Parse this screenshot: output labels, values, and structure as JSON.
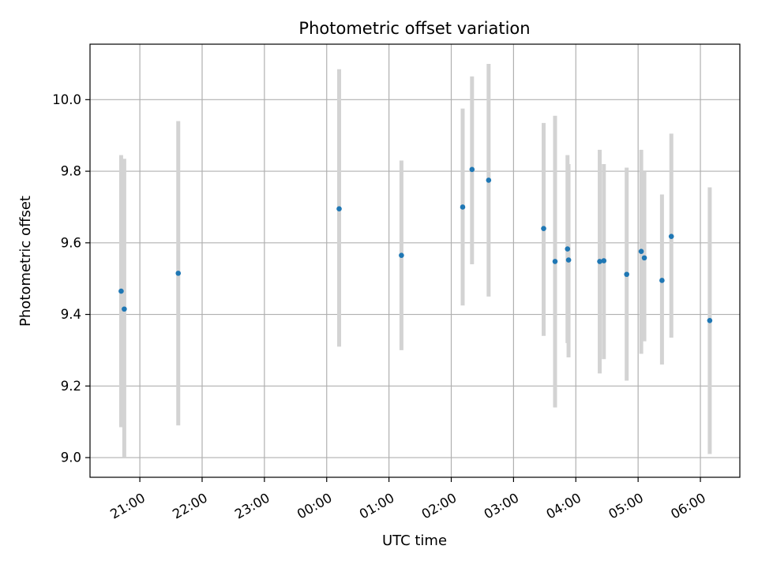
{
  "chart_data": {
    "type": "scatter",
    "title": "Photometric offset variation",
    "xlabel": "UTC time",
    "ylabel": "Photometric offset",
    "xlim": [
      "20:12",
      "30:38"
    ],
    "ylim": [
      8.945,
      10.155
    ],
    "grid": true,
    "x_ticks": [
      {
        "t": "21:00",
        "label": "21:00"
      },
      {
        "t": "22:00",
        "label": "22:00"
      },
      {
        "t": "23:00",
        "label": "23:00"
      },
      {
        "t": "24:00",
        "label": "00:00"
      },
      {
        "t": "25:00",
        "label": "01:00"
      },
      {
        "t": "26:00",
        "label": "02:00"
      },
      {
        "t": "27:00",
        "label": "03:00"
      },
      {
        "t": "28:00",
        "label": "04:00"
      },
      {
        "t": "29:00",
        "label": "05:00"
      },
      {
        "t": "30:00",
        "label": "06:00"
      }
    ],
    "y_ticks": [
      {
        "v": 9.0,
        "label": "9.0"
      },
      {
        "v": 9.2,
        "label": "9.2"
      },
      {
        "v": 9.4,
        "label": "9.4"
      },
      {
        "v": 9.6,
        "label": "9.6"
      },
      {
        "v": 9.8,
        "label": "9.8"
      },
      {
        "v": 10.0,
        "label": "10.0"
      }
    ],
    "points": [
      {
        "t": "20:42",
        "y": 9.465,
        "err_low": 9.085,
        "err_high": 9.845
      },
      {
        "t": "20:45",
        "y": 9.415,
        "err_low": 9.0,
        "err_high": 9.835
      },
      {
        "t": "21:37",
        "y": 9.515,
        "err_low": 9.09,
        "err_high": 9.94
      },
      {
        "t": "24:12",
        "y": 9.695,
        "err_low": 9.31,
        "err_high": 10.085
      },
      {
        "t": "25:12",
        "y": 9.565,
        "err_low": 9.3,
        "err_high": 9.83
      },
      {
        "t": "26:11",
        "y": 9.7,
        "err_low": 9.425,
        "err_high": 9.975
      },
      {
        "t": "26:20",
        "y": 9.805,
        "err_low": 9.54,
        "err_high": 10.065
      },
      {
        "t": "26:36",
        "y": 9.775,
        "err_low": 9.45,
        "err_high": 10.1
      },
      {
        "t": "27:29",
        "y": 9.64,
        "err_low": 9.34,
        "err_high": 9.935
      },
      {
        "t": "27:40",
        "y": 9.548,
        "err_low": 9.14,
        "err_high": 9.955
      },
      {
        "t": "27:52",
        "y": 9.583,
        "err_low": 9.32,
        "err_high": 9.845
      },
      {
        "t": "27:53",
        "y": 9.552,
        "err_low": 9.28,
        "err_high": 9.82
      },
      {
        "t": "28:23",
        "y": 9.548,
        "err_low": 9.235,
        "err_high": 9.86
      },
      {
        "t": "28:27",
        "y": 9.55,
        "err_low": 9.275,
        "err_high": 9.82
      },
      {
        "t": "28:49",
        "y": 9.512,
        "err_low": 9.215,
        "err_high": 9.81
      },
      {
        "t": "29:03",
        "y": 9.576,
        "err_low": 9.29,
        "err_high": 9.86
      },
      {
        "t": "29:06",
        "y": 9.558,
        "err_low": 9.325,
        "err_high": 9.8
      },
      {
        "t": "29:23",
        "y": 9.495,
        "err_low": 9.26,
        "err_high": 9.735
      },
      {
        "t": "29:32",
        "y": 9.618,
        "err_low": 9.335,
        "err_high": 9.905
      },
      {
        "t": "30:09",
        "y": 9.383,
        "err_low": 9.01,
        "err_high": 9.755
      }
    ],
    "colors": {
      "point": "#1f77b4",
      "errorbar": "#d3d3d3",
      "grid": "#b0b0b0",
      "axes": "#000000"
    }
  }
}
